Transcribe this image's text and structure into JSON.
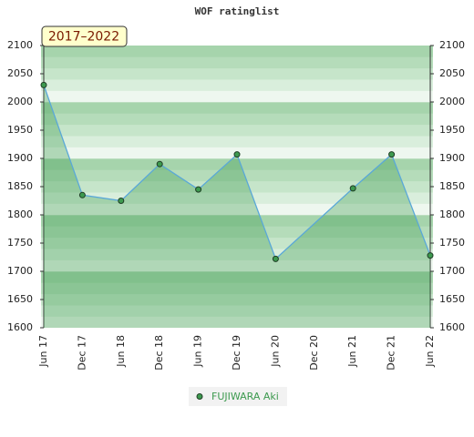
{
  "chart_data": {
    "type": "line",
    "title": "WOF ratinglist",
    "annotation": "2017–2022",
    "categories": [
      "Jun 17",
      "Dec 17",
      "Jun 18",
      "Dec 18",
      "Jun 19",
      "Dec 19",
      "Jun 20",
      "Dec 20",
      "Jun 21",
      "Dec 21",
      "Jun 22"
    ],
    "series": [
      {
        "name": "FUJIWARA Aki",
        "color": "#3d9a4f",
        "x": [
          "Jun 17",
          "Dec 17",
          "Jun 18",
          "Dec 18",
          "Jun 19",
          "Dec 19",
          "Jun 20",
          "Jun 21",
          "Dec 21",
          "Jun 22"
        ],
        "values": [
          2030,
          1835,
          1825,
          1890,
          1845,
          1907,
          1722,
          1847,
          1907,
          1728
        ]
      }
    ],
    "ylim": [
      1600,
      2100
    ],
    "yticks": [
      1600,
      1650,
      1700,
      1750,
      1800,
      1850,
      1900,
      1950,
      2000,
      2050,
      2100
    ],
    "right_axis": true,
    "legend": "bottom"
  }
}
